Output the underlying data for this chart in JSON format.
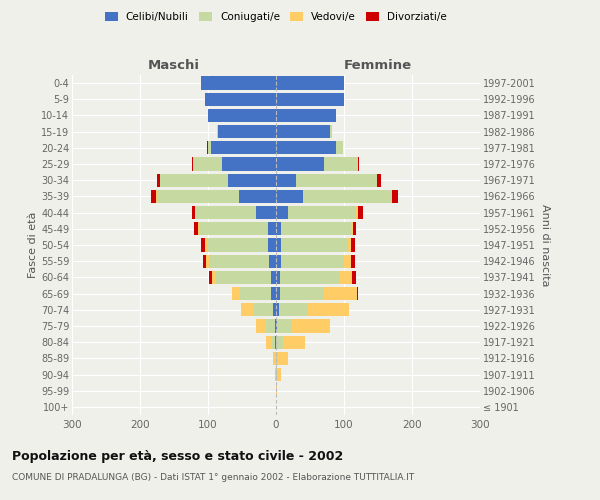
{
  "age_groups": [
    "0-4",
    "5-9",
    "10-14",
    "15-19",
    "20-24",
    "25-29",
    "30-34",
    "35-39",
    "40-44",
    "45-49",
    "50-54",
    "55-59",
    "60-64",
    "65-69",
    "70-74",
    "75-79",
    "80-84",
    "85-89",
    "90-94",
    "95-99",
    "100+"
  ],
  "birth_years": [
    "1997-2001",
    "1992-1996",
    "1987-1991",
    "1982-1986",
    "1977-1981",
    "1972-1976",
    "1967-1971",
    "1962-1966",
    "1957-1961",
    "1952-1956",
    "1947-1951",
    "1942-1946",
    "1937-1941",
    "1932-1936",
    "1927-1931",
    "1922-1926",
    "1917-1921",
    "1912-1916",
    "1907-1911",
    "1902-1906",
    "≤ 1901"
  ],
  "maschi": {
    "celibi": [
      110,
      105,
      100,
      85,
      95,
      80,
      70,
      55,
      30,
      12,
      12,
      10,
      8,
      8,
      5,
      2,
      1,
      0,
      0,
      0,
      0
    ],
    "coniugati": [
      0,
      0,
      0,
      2,
      5,
      42,
      100,
      120,
      88,
      100,
      90,
      88,
      80,
      45,
      28,
      12,
      5,
      2,
      1,
      0,
      0
    ],
    "vedovi": [
      0,
      0,
      0,
      0,
      0,
      0,
      0,
      1,
      1,
      2,
      3,
      5,
      6,
      12,
      18,
      15,
      8,
      2,
      0,
      0,
      0
    ],
    "divorziati": [
      0,
      0,
      0,
      0,
      1,
      2,
      5,
      8,
      4,
      6,
      6,
      5,
      5,
      0,
      0,
      0,
      0,
      0,
      0,
      0,
      0
    ]
  },
  "femmine": {
    "nubili": [
      100,
      100,
      88,
      80,
      88,
      70,
      30,
      40,
      18,
      8,
      8,
      8,
      6,
      6,
      5,
      2,
      0,
      0,
      0,
      0,
      0
    ],
    "coniugate": [
      0,
      0,
      0,
      3,
      10,
      50,
      118,
      130,
      100,
      102,
      98,
      92,
      88,
      65,
      42,
      22,
      10,
      3,
      2,
      0,
      0
    ],
    "vedove": [
      0,
      0,
      0,
      0,
      0,
      0,
      1,
      1,
      2,
      3,
      5,
      10,
      18,
      48,
      60,
      55,
      32,
      15,
      6,
      2,
      0
    ],
    "divorziate": [
      0,
      0,
      0,
      0,
      1,
      2,
      5,
      8,
      8,
      5,
      5,
      6,
      5,
      2,
      0,
      0,
      0,
      0,
      0,
      0,
      0
    ]
  },
  "colors": {
    "celibi": "#4472C4",
    "coniugati": "#C5D9A0",
    "vedovi": "#FFCC66",
    "divorziati": "#CC0000"
  },
  "xlim": 300,
  "title": "Popolazione per età, sesso e stato civile - 2002",
  "subtitle": "COMUNE DI PRADALUNGA (BG) - Dati ISTAT 1° gennaio 2002 - Elaborazione TUTTITALIA.IT",
  "ylabel_left": "Fasce di età",
  "ylabel_right": "Anni di nascita",
  "label_maschi": "Maschi",
  "label_femmine": "Femmine",
  "legend_labels": [
    "Celibi/Nubili",
    "Coniugati/e",
    "Vedovi/e",
    "Divorziati/e"
  ],
  "bg_color": "#f0f0eb"
}
